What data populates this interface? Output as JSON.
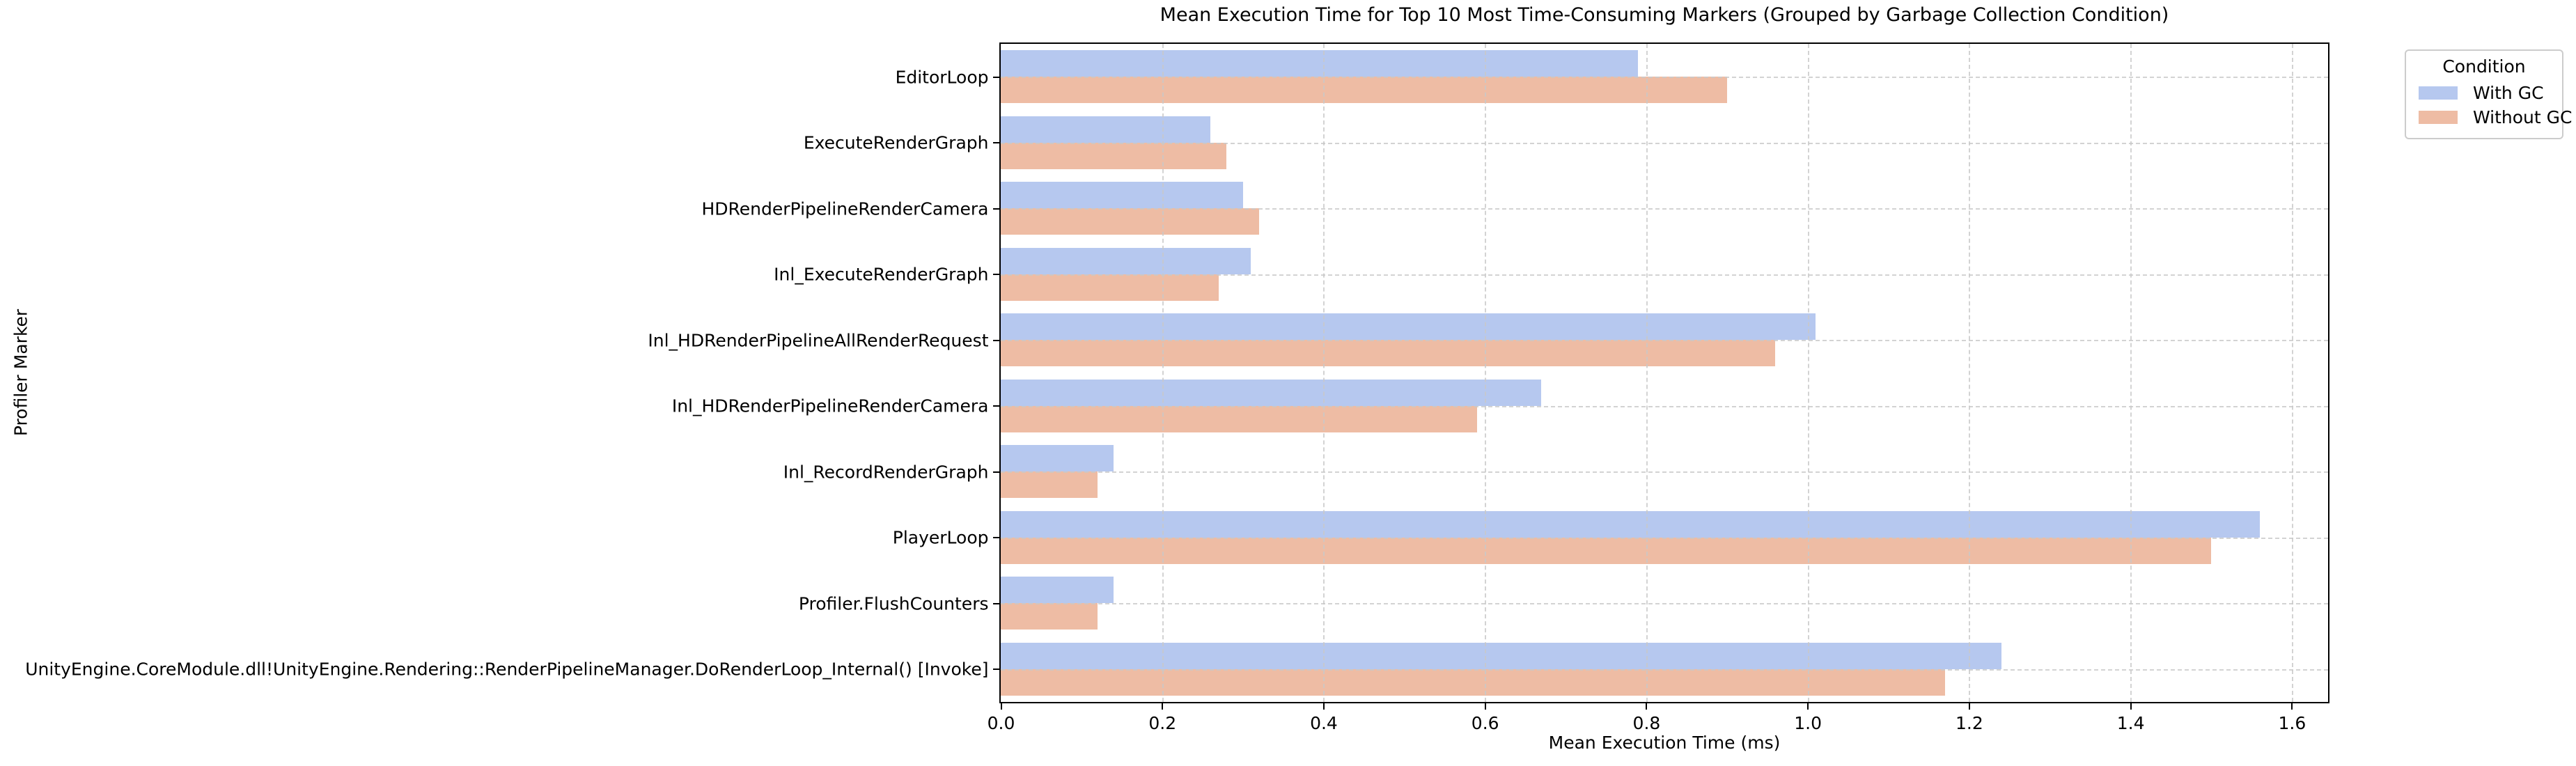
{
  "chart_data": {
    "type": "bar",
    "orientation": "horizontal",
    "title": "Mean Execution Time for Top 10 Most Time-Consuming Markers (Grouped by Garbage Collection Condition)",
    "xlabel": "Mean Execution Time (ms)",
    "ylabel": "Profiler Marker",
    "categories": [
      "EditorLoop",
      "ExecuteRenderGraph",
      "HDRenderPipelineRenderCamera",
      "Inl_ExecuteRenderGraph",
      "Inl_HDRenderPipelineAllRenderRequest",
      "Inl_HDRenderPipelineRenderCamera",
      "Inl_RecordRenderGraph",
      "PlayerLoop",
      "Profiler.FlushCounters",
      "UnityEngine.CoreModule.dll!UnityEngine.Rendering::RenderPipelineManager.DoRenderLoop_Internal() [Invoke]"
    ],
    "series": [
      {
        "name": "With GC",
        "color": "#b6c8ef",
        "values": [
          0.79,
          0.26,
          0.3,
          0.31,
          1.01,
          0.67,
          0.14,
          1.56,
          0.14,
          1.24
        ]
      },
      {
        "name": "Without GC",
        "color": "#eebca4",
        "values": [
          0.9,
          0.28,
          0.32,
          0.27,
          0.96,
          0.59,
          0.12,
          1.5,
          0.12,
          1.17
        ]
      }
    ],
    "x_ticks": [
      0.0,
      0.2,
      0.4,
      0.6,
      0.8,
      1.0,
      1.2,
      1.4,
      1.6
    ],
    "x_tick_labels": [
      "0.0",
      "0.2",
      "0.4",
      "0.6",
      "0.8",
      "1.0",
      "1.2",
      "1.4",
      "1.6"
    ],
    "xlim": [
      0,
      1.645
    ],
    "grid": true,
    "grid_color": "#c9c9c9",
    "legend_title": "Condition",
    "legend_position": "upper right outside"
  }
}
